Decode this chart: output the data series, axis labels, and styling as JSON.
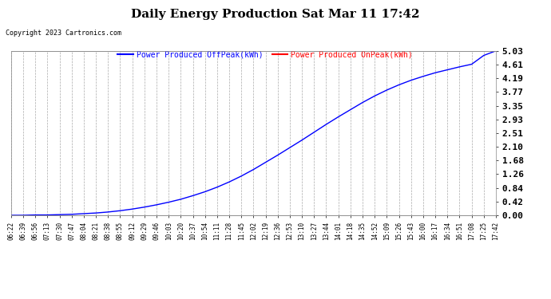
{
  "title": "Daily Energy Production Sat Mar 11 17:42",
  "copyright": "Copyright 2023 Cartronics.com",
  "legend_offpeak": "Power Produced OffPeak(kWh)",
  "legend_onpeak": "Power Produced OnPeak(kWh)",
  "legend_offpeak_color": "blue",
  "legend_onpeak_color": "red",
  "line_color": "blue",
  "background_color": "#ffffff",
  "grid_color": "#aaaaaa",
  "yticks": [
    0.0,
    0.42,
    0.84,
    1.26,
    1.68,
    2.1,
    2.51,
    2.93,
    3.35,
    3.77,
    4.19,
    4.61,
    5.03
  ],
  "ymax": 5.03,
  "ymin": 0.0,
  "xtick_labels": [
    "06:22",
    "06:39",
    "06:56",
    "07:13",
    "07:30",
    "07:47",
    "08:04",
    "08:21",
    "08:38",
    "08:55",
    "09:12",
    "09:29",
    "09:46",
    "10:03",
    "10:20",
    "10:37",
    "10:54",
    "11:11",
    "11:28",
    "11:45",
    "12:02",
    "12:19",
    "12:36",
    "12:53",
    "13:10",
    "13:27",
    "13:44",
    "14:01",
    "14:18",
    "14:35",
    "14:52",
    "15:09",
    "15:26",
    "15:43",
    "16:00",
    "16:17",
    "16:34",
    "16:51",
    "17:08",
    "17:25",
    "17:42"
  ],
  "curve_y": [
    0.0,
    0.0,
    0.01,
    0.01,
    0.02,
    0.03,
    0.05,
    0.07,
    0.1,
    0.14,
    0.19,
    0.25,
    0.32,
    0.4,
    0.49,
    0.6,
    0.72,
    0.86,
    1.02,
    1.2,
    1.4,
    1.62,
    1.84,
    2.07,
    2.3,
    2.54,
    2.78,
    3.01,
    3.23,
    3.45,
    3.65,
    3.83,
    3.99,
    4.13,
    4.25,
    4.36,
    4.45,
    4.54,
    4.62,
    4.89,
    5.03
  ]
}
